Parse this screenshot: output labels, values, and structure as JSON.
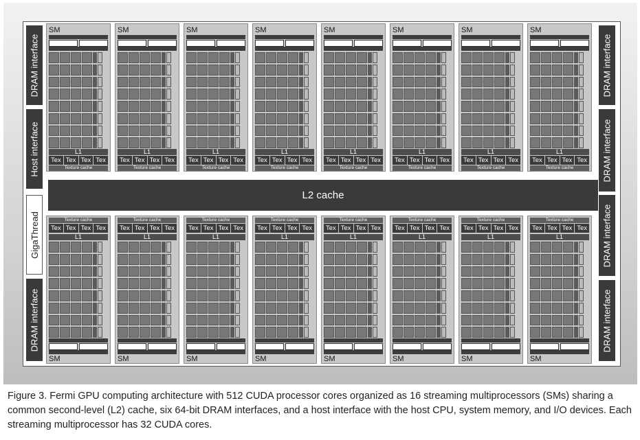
{
  "diagram": {
    "left_side": [
      "DRAM interface",
      "Host interface",
      "GigaThread",
      "DRAM interface"
    ],
    "right_side": [
      "DRAM interface",
      "DRAM interface",
      "DRAM interface",
      "DRAM interface"
    ],
    "l2_label": "L2 cache",
    "sm_label": "SM",
    "l1_label": "L1",
    "tex_label": "Tex",
    "texture_cache_label": "Texture cache",
    "sm_count_per_row": 8
  },
  "caption": "Figure 3. Fermi GPU computing architecture with 512 CUDA processor cores organized as 16 streaming multiprocessors (SMs) sharing a common second-level (L2) cache, six 64-bit DRAM interfaces, and a host interface with the host CPU, system memory, and I/O devices. Each streaming multiprocessor has 32 CUDA cores."
}
